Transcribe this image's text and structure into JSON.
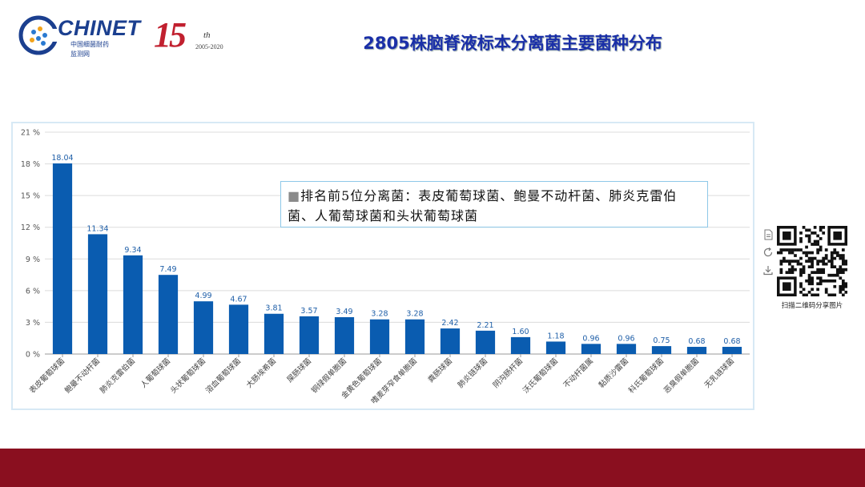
{
  "header": {
    "logo_text": "CHINET",
    "logo_sub1": "中国细菌耐药",
    "logo_sub2": "监测网",
    "anniversary_number": "15",
    "anniversary_suffix": "th",
    "anniversary_years": "2005-2020",
    "title": "2805株脑脊液标本分离菌主要菌种分布"
  },
  "note": {
    "bullet": "■",
    "text": "排名前5位分离菌：表皮葡萄球菌、鲍曼不动杆菌、肺炎克雷伯菌、人葡萄球菌和头状葡萄球菌"
  },
  "share": {
    "caption": "扫描二维码分享图片",
    "icons": [
      "document-icon",
      "refresh-icon",
      "download-icon"
    ]
  },
  "colors": {
    "bar": "#0a5cb0",
    "label": "#1f5fa8",
    "title": "#1a2fa8",
    "footer": "#8a0f1f"
  },
  "chart_data": {
    "type": "bar",
    "categories": [
      "表皮葡萄球菌",
      "鲍曼不动杆菌",
      "肺炎克雷伯菌",
      "人葡萄球菌",
      "头状葡萄球菌",
      "溶血葡萄球菌",
      "大肠埃希菌",
      "屎肠球菌",
      "铜绿假单胞菌",
      "金黄色葡萄球菌",
      "嗜麦芽窄食单胞菌",
      "粪肠球菌",
      "肺炎链球菌",
      "阴沟肠杆菌",
      "沃氏葡萄球菌",
      "不动杆菌属",
      "黏质沙雷菌",
      "科氏葡萄球菌",
      "恶臭假单胞菌",
      "无乳链球菌"
    ],
    "values": [
      18.04,
      11.34,
      9.34,
      7.49,
      4.99,
      4.67,
      3.81,
      3.57,
      3.49,
      3.28,
      3.28,
      2.42,
      2.21,
      1.6,
      1.18,
      0.96,
      0.96,
      0.75,
      0.68,
      0.68
    ],
    "value_labels": [
      "18.04",
      "11.34",
      "9.34",
      "7.49",
      "4.99",
      "4.67",
      "3.81",
      "3.57",
      "3.49",
      "3.28",
      "3.28",
      "2.42",
      "2.21",
      "1.60",
      "1.18",
      "0.96",
      "0.96",
      "0.75",
      "0.68",
      "0.68"
    ],
    "yticks": [
      "0 %",
      "3 %",
      "6 %",
      "9 %",
      "12 %",
      "15 %",
      "18 %",
      "21 %"
    ],
    "ylim": [
      0,
      21
    ],
    "grid": true,
    "legend": "none"
  }
}
